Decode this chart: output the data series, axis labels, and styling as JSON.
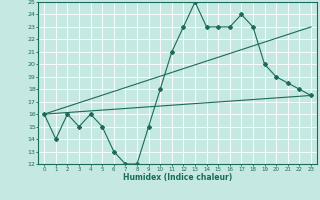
{
  "xlabel": "Humidex (Indice chaleur)",
  "bg_color": "#c5e8e2",
  "grid_color": "#ffffff",
  "line_color": "#1a6b5a",
  "xmin": -0.5,
  "xmax": 23.5,
  "ymin": 12,
  "ymax": 25,
  "line1_x": [
    0,
    1,
    2,
    3,
    4,
    5,
    6,
    7,
    8,
    9,
    10,
    11,
    12,
    13,
    14,
    15,
    16,
    17,
    18,
    19,
    20,
    21,
    22,
    23
  ],
  "line1_y": [
    16,
    14,
    16,
    15,
    16,
    15,
    13,
    12,
    12,
    15,
    18,
    21,
    23,
    25,
    23,
    23,
    23,
    24,
    23,
    20,
    19,
    18.5,
    18,
    17.5
  ],
  "line2_x": [
    0,
    23
  ],
  "line2_y": [
    16,
    23
  ],
  "line3_x": [
    0,
    23
  ],
  "line3_y": [
    16,
    17.5
  ]
}
